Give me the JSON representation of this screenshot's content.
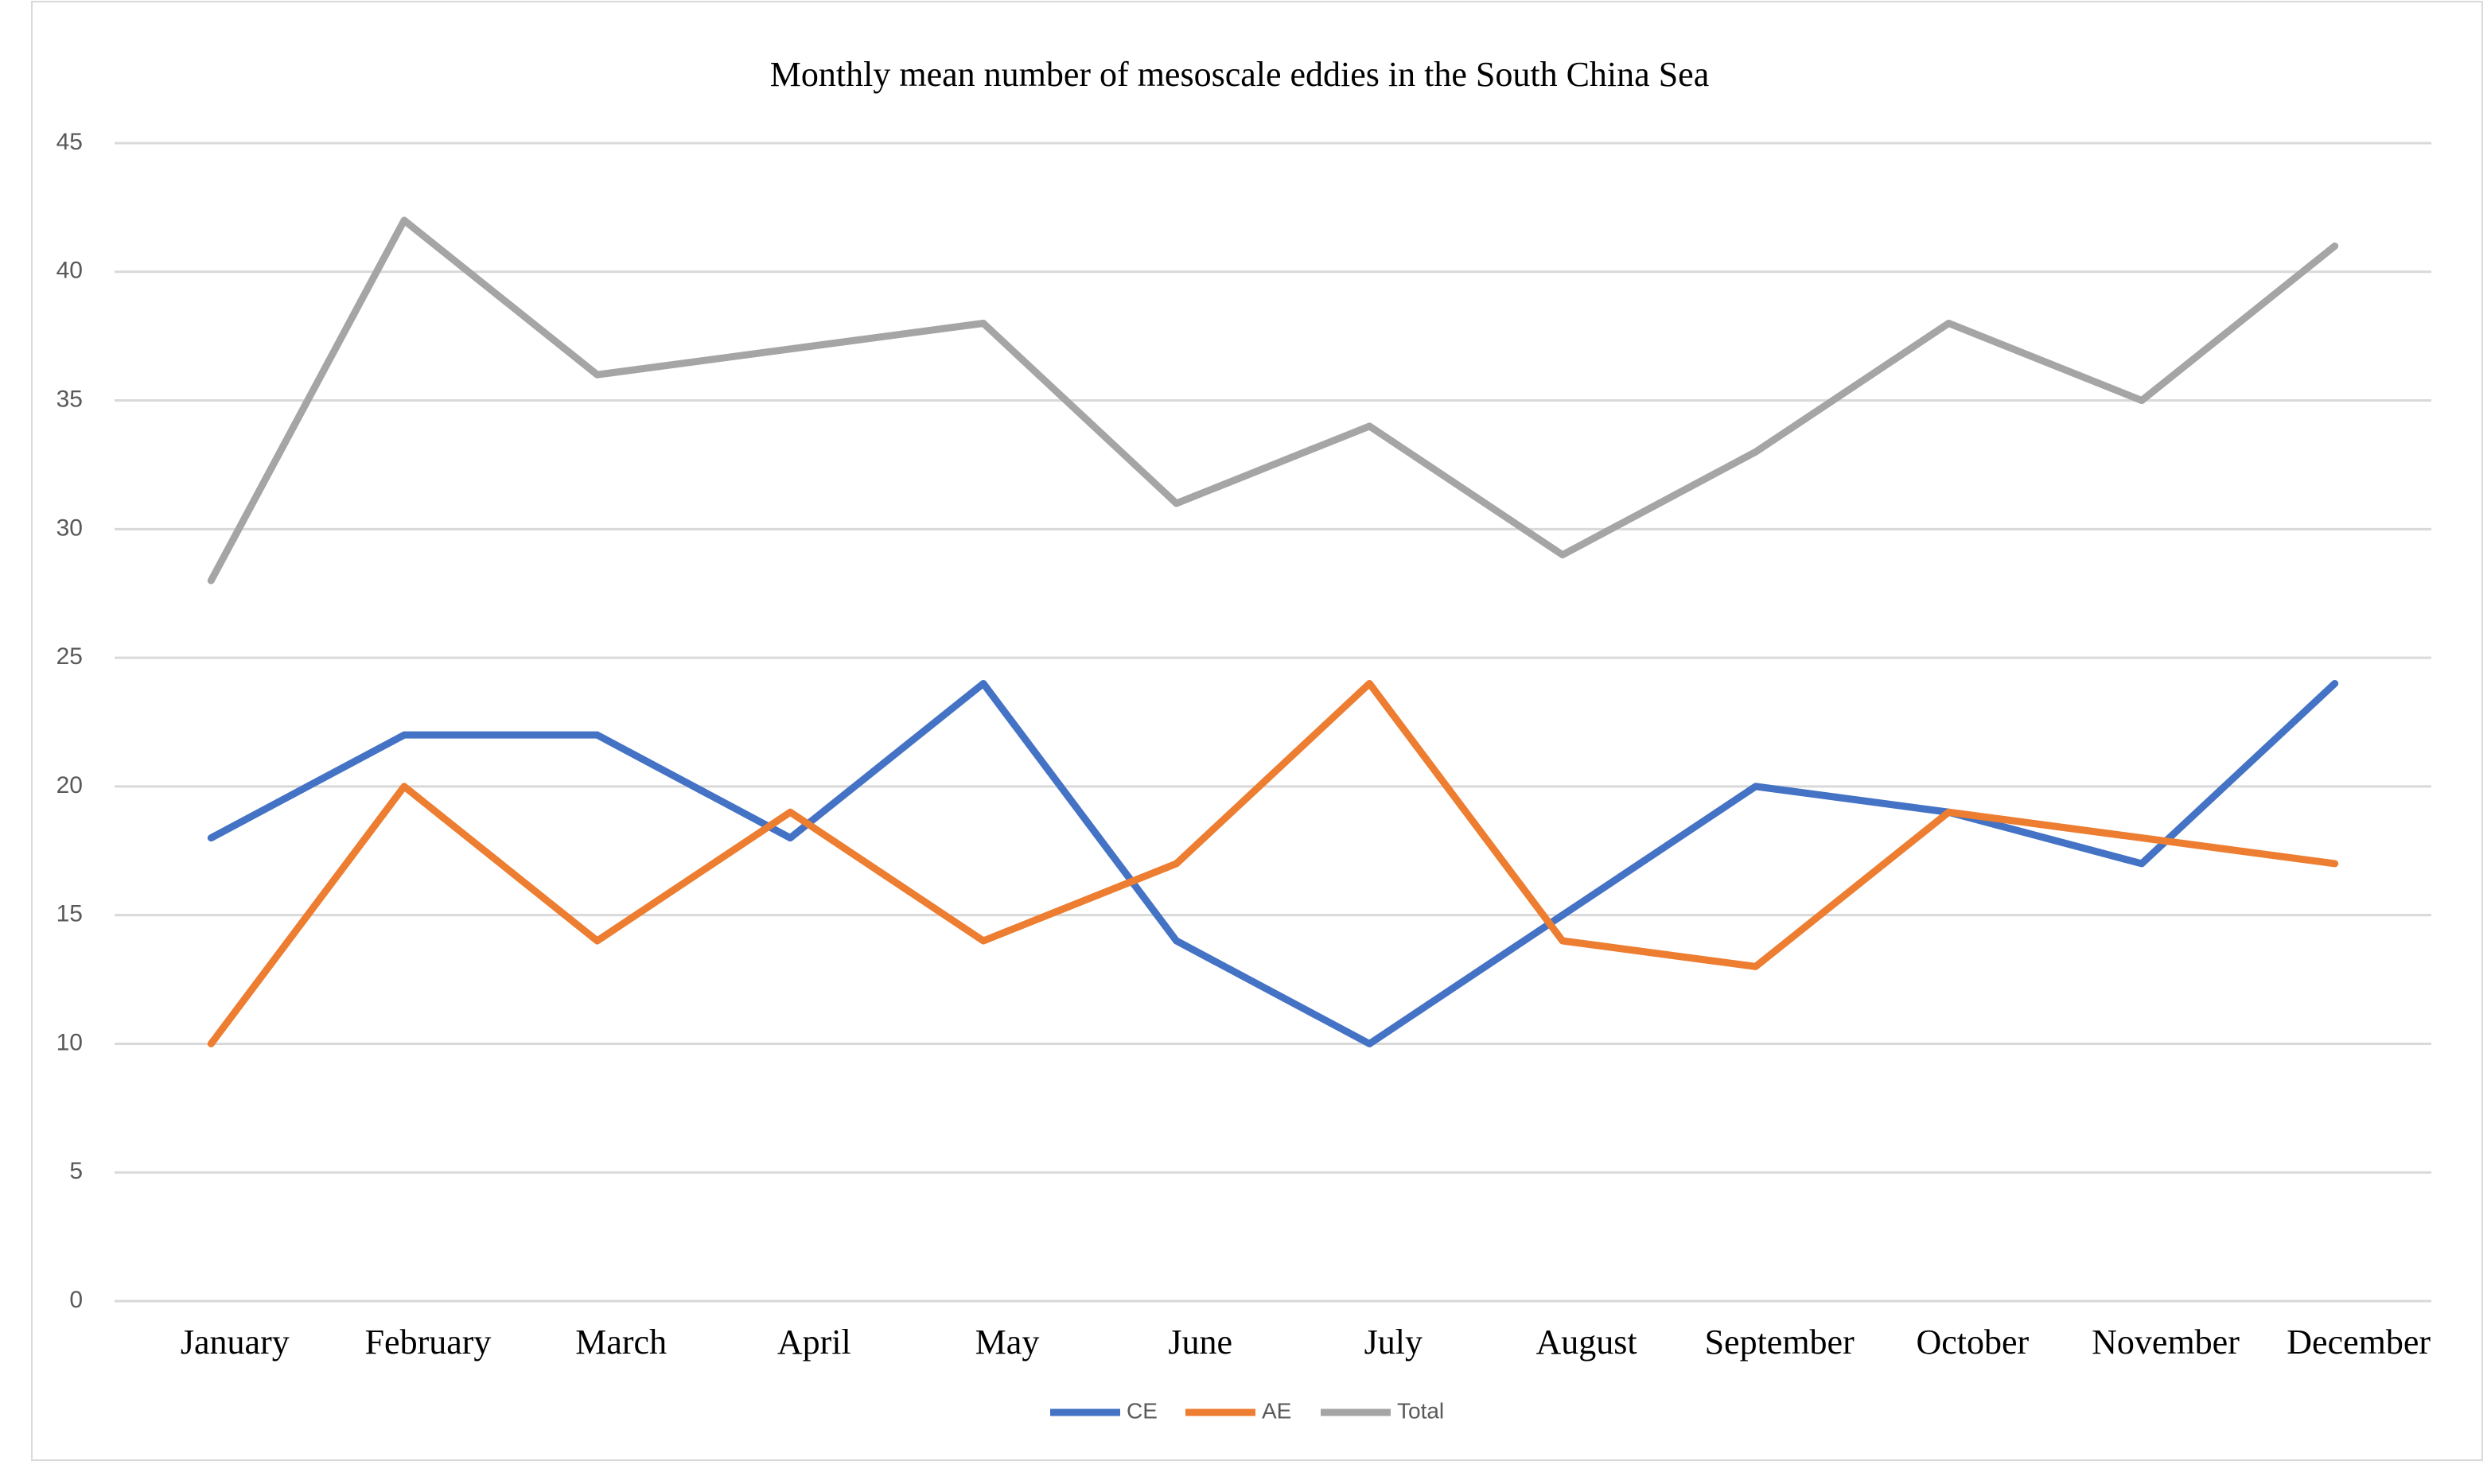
{
  "chart_data": {
    "type": "line",
    "title": "Monthly mean number of mesoscale eddies in the South China Sea",
    "categories": [
      "January",
      "February",
      "March",
      "April",
      "May",
      "June",
      "July",
      "August",
      "September",
      "October",
      "November",
      "December"
    ],
    "series": [
      {
        "name": "CE",
        "color": "#4472c4",
        "values": [
          18,
          22,
          22,
          18,
          24,
          14,
          10,
          15,
          20,
          19,
          17,
          24
        ]
      },
      {
        "name": "AE",
        "color": "#ed7d31",
        "values": [
          10,
          20,
          14,
          19,
          14,
          17,
          24,
          14,
          13,
          19,
          18,
          17
        ]
      },
      {
        "name": "Total",
        "color": "#a5a5a5",
        "values": [
          28,
          42,
          36,
          37,
          38,
          31,
          34,
          29,
          33,
          38,
          35,
          41
        ]
      }
    ],
    "ylim": [
      0,
      45
    ],
    "yticks": [
      0,
      5,
      10,
      15,
      20,
      25,
      30,
      35,
      40,
      45
    ],
    "grid": true,
    "legend": "bottom"
  }
}
